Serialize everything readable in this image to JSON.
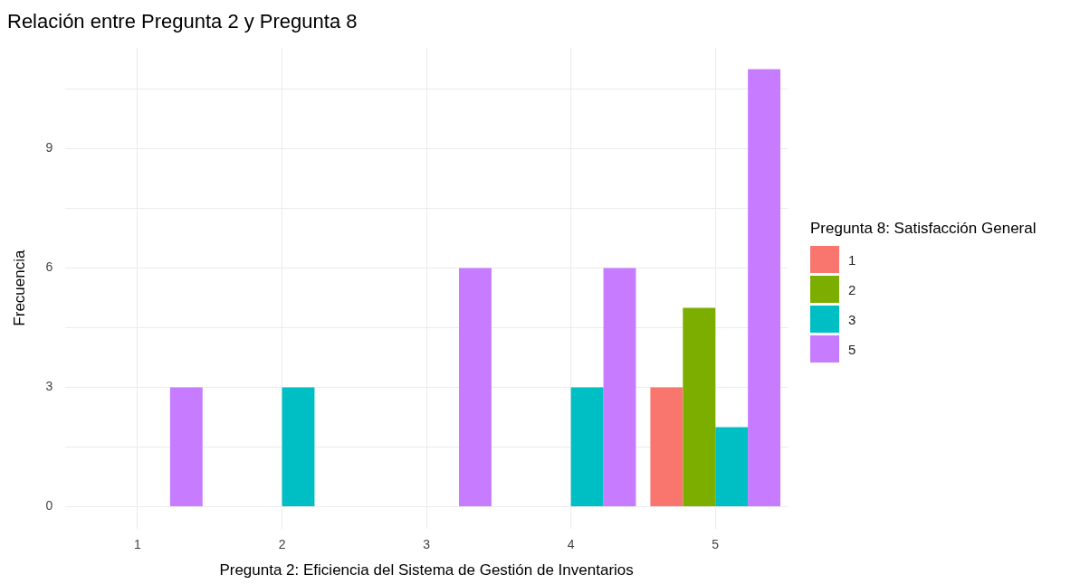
{
  "chart_data": {
    "type": "bar",
    "title": "Relación entre Pregunta 2 y Pregunta 8",
    "xlabel": "Pregunta 2: Eficiencia del Sistema de Gestión de Inventarios",
    "ylabel": "Frecuencia",
    "legend_title": "Pregunta 8: Satisfacción General",
    "categories": [
      "1",
      "2",
      "3",
      "4",
      "5"
    ],
    "series": [
      {
        "name": "1",
        "color": "#f8766d",
        "values": [
          null,
          null,
          null,
          null,
          3
        ]
      },
      {
        "name": "2",
        "color": "#7cae00",
        "values": [
          null,
          null,
          null,
          null,
          5
        ]
      },
      {
        "name": "3",
        "color": "#00bfc4",
        "values": [
          null,
          3,
          null,
          3,
          2
        ]
      },
      {
        "name": "5",
        "color": "#c77cff",
        "values": [
          3,
          null,
          6,
          6,
          11
        ]
      }
    ],
    "ylim": [
      -0.55,
      11.55
    ],
    "yticks": [
      0,
      {
        "value": 1.5,
        "label": null
      },
      3,
      {
        "value": 4.5,
        "label": null
      },
      6,
      {
        "value": 7.5,
        "label": null
      },
      9,
      {
        "value": 10.5,
        "label": null
      }
    ],
    "grid": true,
    "legend": "right"
  }
}
